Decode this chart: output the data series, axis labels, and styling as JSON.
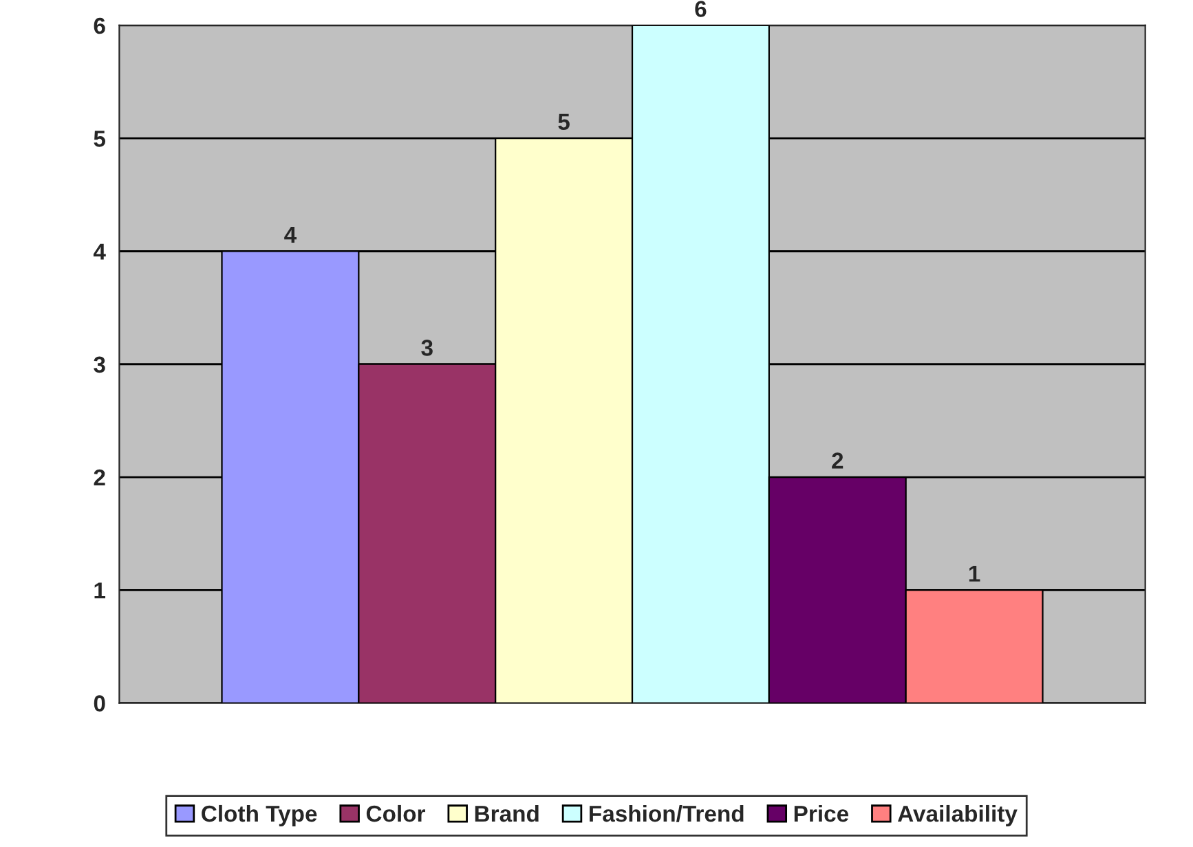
{
  "chart_data": {
    "type": "bar",
    "categories": [
      null
    ],
    "series": [
      {
        "name": "Cloth Type",
        "color": "#9999ff",
        "values": [
          4
        ]
      },
      {
        "name": "Color",
        "color": "#993366",
        "values": [
          3
        ]
      },
      {
        "name": "Brand",
        "color": "#ffffcc",
        "values": [
          5
        ]
      },
      {
        "name": "Fashion/Trend",
        "color": "#ccffff",
        "values": [
          6
        ]
      },
      {
        "name": "Price",
        "color": "#660066",
        "values": [
          2
        ]
      },
      {
        "name": "Availability",
        "color": "#ff8080",
        "values": [
          1
        ]
      }
    ],
    "ylim": [
      0,
      6
    ],
    "yticks": [
      0,
      1,
      2,
      3,
      4,
      5,
      6
    ],
    "grid": "y",
    "data_labels": true,
    "legend": "bottom"
  }
}
